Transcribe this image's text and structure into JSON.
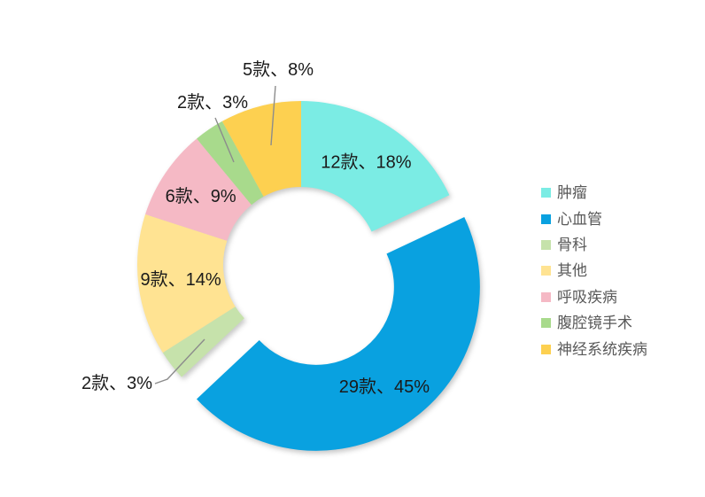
{
  "chart_data": {
    "type": "pie",
    "subtype": "donut-exploded",
    "title": "",
    "legend_position": "right",
    "background_color": "#ffffff",
    "label_color": "#1a1a1a",
    "legend_text_color": "#595959",
    "leader_line_color": "#8c8c8c",
    "segments": [
      {
        "name": "肿瘤",
        "count_label": "12款",
        "pct": 18,
        "label": "12款、18%",
        "color": "#7BECE4",
        "exploded": false,
        "label_placement": "inside"
      },
      {
        "name": "心血管",
        "count_label": "29款",
        "pct": 45,
        "label": "29款、45%",
        "color": "#09A1E0",
        "exploded": true,
        "label_placement": "inside"
      },
      {
        "name": "骨科",
        "count_label": "2款",
        "pct": 3,
        "label": "2款、3%",
        "color": "#C6E2AB",
        "exploded": false,
        "label_placement": "outside"
      },
      {
        "name": "其他",
        "count_label": "9款",
        "pct": 14,
        "label": "9款、14%",
        "color": "#FFE392",
        "exploded": false,
        "label_placement": "inside"
      },
      {
        "name": "呼吸疾病",
        "count_label": "6款",
        "pct": 9,
        "label": "6款、9%",
        "color": "#F5B9C5",
        "exploded": false,
        "label_placement": "inside"
      },
      {
        "name": "腹腔镜手术",
        "count_label": "2款",
        "pct": 3,
        "label": "2款、3%",
        "color": "#A8DA8C",
        "exploded": false,
        "label_placement": "outside"
      },
      {
        "name": "神经系统疾病",
        "count_label": "5款",
        "pct": 8,
        "label": "5款、8%",
        "color": "#FDD050",
        "exploded": false,
        "label_placement": "outside"
      }
    ],
    "legend": [
      "肿瘤",
      "心血管",
      "骨科",
      "其他",
      "呼吸疾病",
      "腹腔镜手术",
      "神经系统疾病"
    ]
  }
}
